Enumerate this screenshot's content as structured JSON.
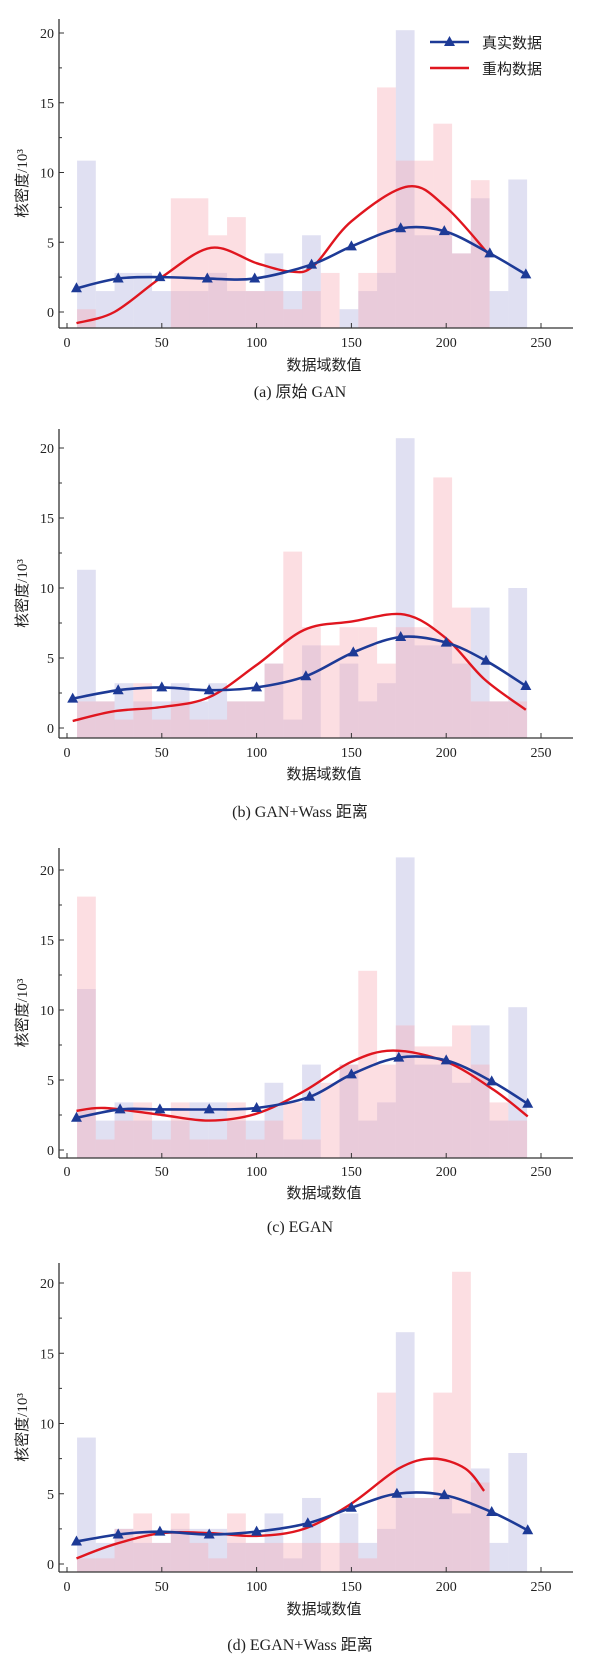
{
  "legend": {
    "real": "真实数据",
    "recon": "重构数据"
  },
  "colors": {
    "real_line": "#1d3a96",
    "recon_line": "#e0161f",
    "real_hist": "#b4b4e1",
    "recon_hist": "#f7a9b4"
  },
  "chart_data": [
    {
      "type": "bar+line",
      "title": "(a)  原始 GAN",
      "xlabel": "数据域数值",
      "ylabel": "核密度/10³",
      "xticks": [
        0,
        50,
        100,
        150,
        200,
        250
      ],
      "yticks": [
        0,
        5,
        10,
        15,
        20
      ],
      "xlim": [
        -4,
        266
      ],
      "ylim": [
        -1.15,
        21.0
      ],
      "legend": "top-right",
      "bins": {
        "start": 5.3,
        "width": 9.89
      },
      "hist_real": [
        10.85,
        1.5,
        2.8,
        2.8,
        1.5,
        1.5,
        1.5,
        2.8,
        1.5,
        1.5,
        4.2,
        1.5,
        5.5,
        null,
        0.2,
        1.5,
        2.8,
        20.2,
        5.5,
        5.5,
        4.2,
        8.15,
        1.5,
        9.5
      ],
      "hist_recon": [
        0.2,
        null,
        null,
        null,
        null,
        8.15,
        8.15,
        5.5,
        6.8,
        1.5,
        1.5,
        0.2,
        1.5,
        2.8,
        null,
        2.8,
        16.1,
        10.85,
        10.85,
        13.5,
        4.2,
        9.45,
        null,
        null
      ],
      "real_kde": {
        "x": [
          5,
          27,
          49,
          74,
          99,
          129,
          150,
          176,
          199,
          223,
          242
        ],
        "y": [
          1.7,
          2.4,
          2.5,
          2.4,
          2.4,
          3.4,
          4.7,
          6.0,
          5.8,
          4.2,
          2.7
        ]
      },
      "recon_kde": {
        "x": [
          5,
          25,
          50,
          76,
          100,
          118,
          130,
          150,
          180,
          200,
          222
        ],
        "y": [
          -0.8,
          0.0,
          2.5,
          4.6,
          3.5,
          2.9,
          3.3,
          6.5,
          9.0,
          7.5,
          4.2
        ]
      }
    },
    {
      "type": "bar+line",
      "title": "(b)  GAN+Wass 距离",
      "xlabel": "数据域数值",
      "ylabel": "核密度/10³",
      "xticks": [
        0,
        50,
        100,
        150,
        200,
        250
      ],
      "yticks": [
        0,
        5,
        10,
        15,
        20
      ],
      "xlim": [
        -4,
        266
      ],
      "ylim": [
        -0.7,
        21.3
      ],
      "bins": {
        "start": 5.3,
        "width": 9.89
      },
      "hist_real": [
        11.3,
        1.9,
        3.2,
        1.9,
        1.9,
        3.2,
        1.9,
        3.2,
        1.9,
        1.9,
        4.6,
        0.6,
        5.9,
        null,
        4.6,
        1.9,
        3.2,
        20.7,
        5.9,
        5.9,
        4.6,
        8.6,
        1.9,
        10.0
      ],
      "hist_recon": [
        1.9,
        1.9,
        0.6,
        3.2,
        0.6,
        1.9,
        0.6,
        0.6,
        1.9,
        1.9,
        4.6,
        12.6,
        7.2,
        5.9,
        7.2,
        7.2,
        4.6,
        7.2,
        7.2,
        17.9,
        8.6,
        1.9,
        1.9,
        1.9
      ],
      "real_kde": {
        "x": [
          3,
          27,
          50,
          75,
          100,
          126,
          151,
          176,
          200,
          221,
          242
        ],
        "y": [
          2.1,
          2.7,
          2.9,
          2.7,
          2.9,
          3.7,
          5.4,
          6.5,
          6.1,
          4.8,
          3.0
        ]
      },
      "recon_kde": {
        "x": [
          3,
          25,
          50,
          75,
          100,
          125,
          150,
          178,
          200,
          220,
          242
        ],
        "y": [
          0.5,
          1.2,
          1.5,
          2.2,
          4.5,
          7.0,
          7.6,
          8.1,
          6.4,
          3.5,
          1.3
        ]
      }
    },
    {
      "type": "bar+line",
      "title": "(c)  EGAN",
      "xlabel": "数据域数值",
      "ylabel": "核密度/10³",
      "xticks": [
        0,
        50,
        100,
        150,
        200,
        250
      ],
      "yticks": [
        0,
        5,
        10,
        15,
        20
      ],
      "xlim": [
        -4,
        266
      ],
      "ylim": [
        -0.55,
        21.5
      ],
      "bins": {
        "start": 5.3,
        "width": 9.89
      },
      "hist_real": [
        11.5,
        2.1,
        3.4,
        2.1,
        2.1,
        2.1,
        3.4,
        3.4,
        2.1,
        2.1,
        4.8,
        0.75,
        6.1,
        null,
        6.1,
        2.1,
        3.4,
        20.9,
        6.1,
        6.1,
        4.8,
        8.9,
        2.1,
        10.2
      ],
      "hist_recon": [
        18.1,
        0.75,
        2.1,
        3.4,
        0.75,
        3.4,
        0.75,
        0.75,
        3.4,
        0.75,
        2.1,
        3.4,
        0.75,
        4.8,
        6.1,
        12.8,
        6.1,
        8.9,
        7.4,
        7.4,
        8.9,
        6.1,
        3.4,
        2.1
      ],
      "real_kde": {
        "x": [
          5,
          28,
          49,
          75,
          100,
          128,
          150,
          175,
          200,
          224,
          243
        ],
        "y": [
          2.3,
          2.9,
          2.9,
          2.9,
          3.0,
          3.8,
          5.4,
          6.6,
          6.4,
          4.9,
          3.3
        ]
      },
      "recon_kde": {
        "x": [
          5,
          20,
          50,
          75,
          100,
          125,
          150,
          172,
          200,
          225,
          243
        ],
        "y": [
          2.8,
          3.0,
          2.5,
          2.1,
          2.6,
          4.2,
          6.3,
          7.1,
          6.3,
          4.3,
          2.4
        ]
      }
    },
    {
      "type": "bar+line",
      "title": "(d)  EGAN+Wass 距离",
      "xlabel": "数据域数值",
      "ylabel": "核密度/10³",
      "xticks": [
        0,
        50,
        100,
        150,
        200,
        250
      ],
      "yticks": [
        0,
        5,
        10,
        15,
        20
      ],
      "xlim": [
        -4,
        266
      ],
      "ylim": [
        -0.6,
        21.4
      ],
      "bins": {
        "start": 5.3,
        "width": 9.89
      },
      "hist_real": [
        9.0,
        1.5,
        2.5,
        1.5,
        1.5,
        2.5,
        2.5,
        2.5,
        1.5,
        1.5,
        3.6,
        0.4,
        4.7,
        null,
        3.6,
        1.5,
        2.5,
        16.5,
        4.7,
        4.7,
        3.6,
        6.8,
        1.5,
        7.9
      ],
      "hist_recon": [
        0.4,
        0.4,
        2.5,
        3.6,
        1.5,
        3.6,
        1.5,
        0.4,
        3.6,
        1.5,
        1.5,
        1.5,
        1.5,
        1.5,
        1.5,
        0.4,
        12.2,
        4.7,
        4.7,
        12.2,
        20.8,
        5.8,
        null,
        null
      ],
      "real_kde": {
        "x": [
          5,
          27,
          49,
          75,
          100,
          127,
          150,
          174,
          199,
          224,
          243
        ],
        "y": [
          1.6,
          2.1,
          2.3,
          2.1,
          2.3,
          2.9,
          4.0,
          5.0,
          4.9,
          3.7,
          2.4
        ]
      },
      "recon_kde": {
        "x": [
          5,
          25,
          50,
          75,
          100,
          125,
          150,
          175,
          193,
          210,
          220
        ],
        "y": [
          0.4,
          1.4,
          2.2,
          2.2,
          2.0,
          2.5,
          4.3,
          6.8,
          7.5,
          6.8,
          5.2
        ]
      }
    }
  ]
}
